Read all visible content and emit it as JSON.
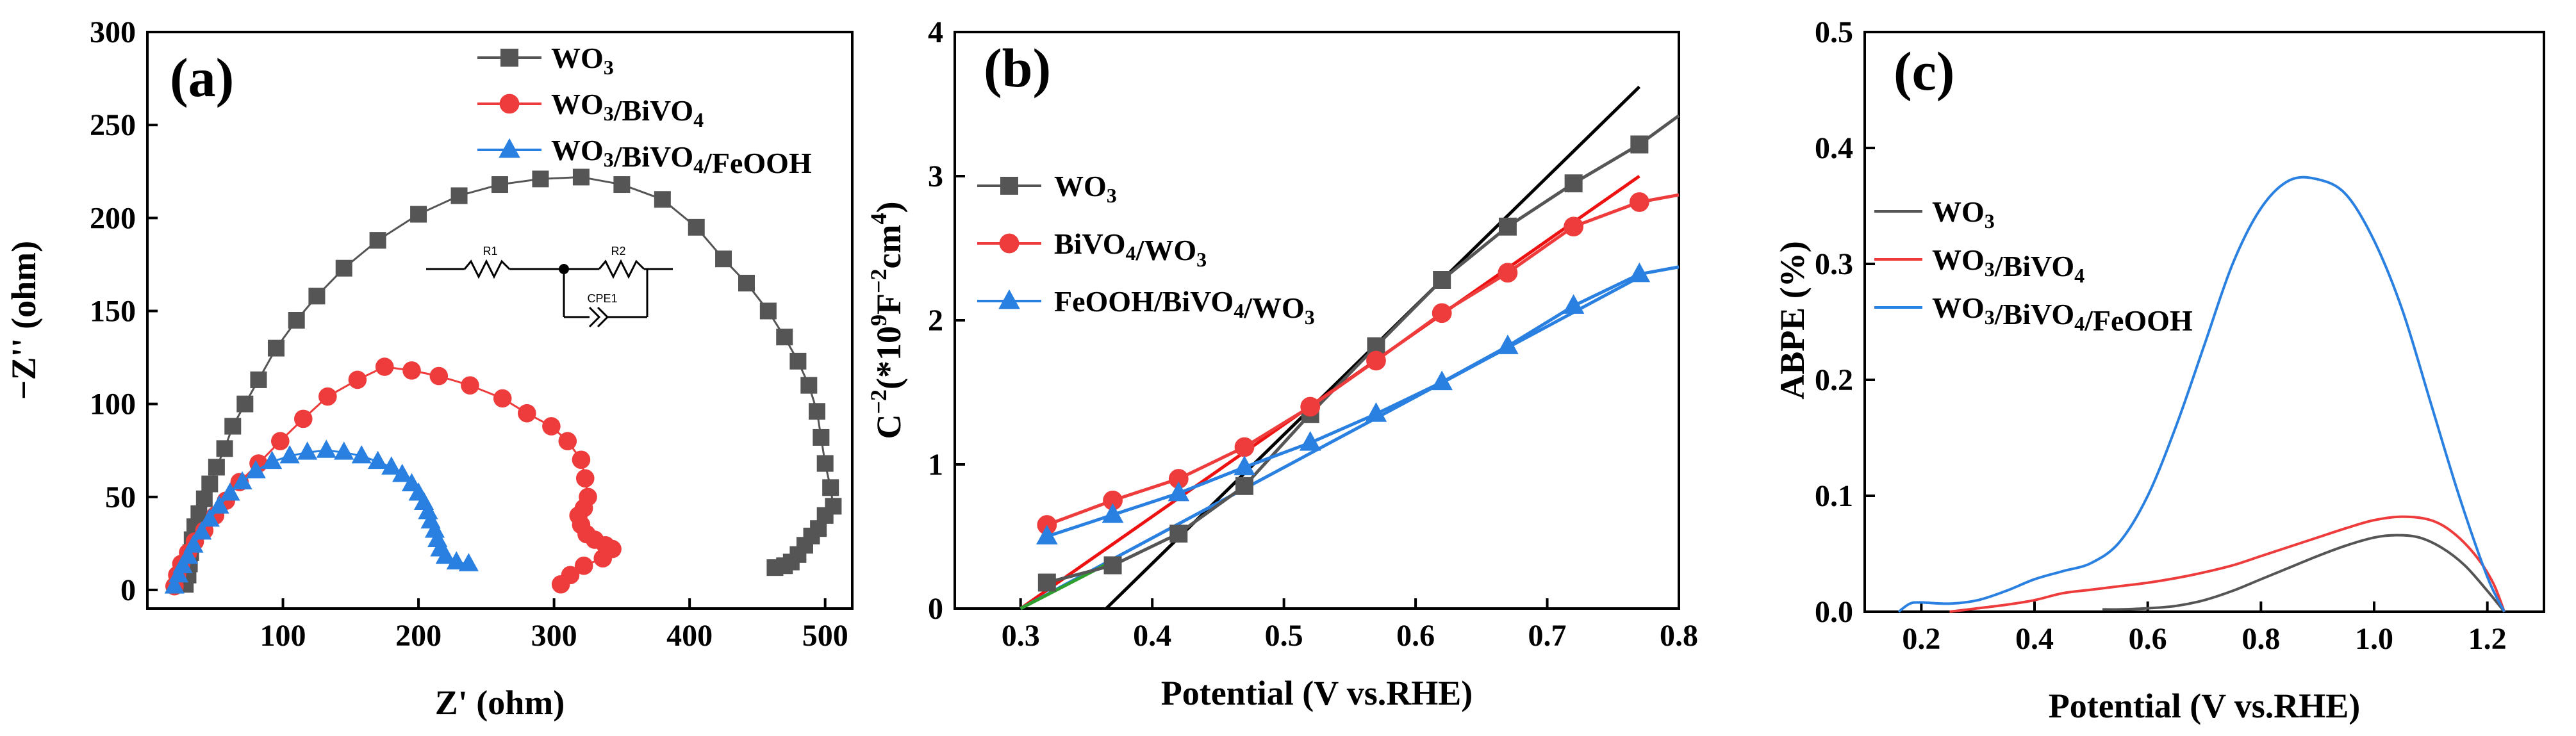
{
  "chart_data": [
    {
      "type": "scatter",
      "panel_label": "(a)",
      "xlabel": "Z' (ohm)",
      "ylabel": "-Z'' (ohm)",
      "xlim": [
        0,
        520
      ],
      "ylim": [
        -10,
        300
      ],
      "xticks": [
        100,
        200,
        300,
        400,
        500
      ],
      "yticks": [
        0,
        50,
        100,
        150,
        200,
        250,
        300
      ],
      "grid": false,
      "legend_position": "top-center",
      "inset": {
        "type": "equivalent-circuit",
        "labels": [
          "R1",
          "R2",
          "CPE1"
        ]
      },
      "series": [
        {
          "name": "WO3",
          "color": "#555555",
          "marker": "square",
          "points": [
            [
              28,
              3
            ],
            [
              30,
              8
            ],
            [
              31,
              14
            ],
            [
              32,
              20
            ],
            [
              33,
              27
            ],
            [
              35,
              34
            ],
            [
              38,
              41
            ],
            [
              42,
              49
            ],
            [
              46,
              57
            ],
            [
              51,
              66
            ],
            [
              57,
              76
            ],
            [
              63,
              88
            ],
            [
              72,
              100
            ],
            [
              82,
              113
            ],
            [
              95,
              130
            ],
            [
              110,
              145
            ],
            [
              125,
              158
            ],
            [
              145,
              173
            ],
            [
              170,
              188
            ],
            [
              200,
              202
            ],
            [
              230,
              212
            ],
            [
              260,
              218
            ],
            [
              290,
              221
            ],
            [
              320,
              222
            ],
            [
              350,
              218
            ],
            [
              380,
              210
            ],
            [
              405,
              195
            ],
            [
              425,
              178
            ],
            [
              442,
              165
            ],
            [
              458,
              150
            ],
            [
              470,
              136
            ],
            [
              480,
              123
            ],
            [
              488,
              110
            ],
            [
              494,
              96
            ],
            [
              497,
              82
            ],
            [
              500,
              68
            ],
            [
              504,
              55
            ],
            [
              506,
              45
            ],
            [
              500,
              40
            ],
            [
              495,
              33
            ],
            [
              490,
              29
            ],
            [
              485,
              24
            ],
            [
              480,
              19
            ],
            [
              475,
              15
            ],
            [
              470,
              13
            ],
            [
              463,
              12
            ]
          ]
        },
        {
          "name": "WO3/BiVO4",
          "color": "#ee3b3b",
          "marker": "circle",
          "points": [
            [
              20,
              2
            ],
            [
              22,
              8
            ],
            [
              25,
              14
            ],
            [
              30,
              20
            ],
            [
              35,
              26
            ],
            [
              42,
              32
            ],
            [
              50,
              40
            ],
            [
              58,
              48
            ],
            [
              68,
              58
            ],
            [
              82,
              68
            ],
            [
              98,
              80
            ],
            [
              115,
              92
            ],
            [
              133,
              104
            ],
            [
              155,
              113
            ],
            [
              175,
              120
            ],
            [
              195,
              118
            ],
            [
              215,
              115
            ],
            [
              238,
              110
            ],
            [
              262,
              103
            ],
            [
              280,
              95
            ],
            [
              298,
              88
            ],
            [
              310,
              80
            ],
            [
              320,
              70
            ],
            [
              323,
              60
            ],
            [
              325,
              50
            ],
            [
              322,
              44
            ],
            [
              318,
              40
            ],
            [
              320,
              35
            ],
            [
              324,
              30
            ],
            [
              330,
              27
            ],
            [
              338,
              24
            ],
            [
              343,
              22
            ],
            [
              336,
              17
            ],
            [
              322,
              13
            ],
            [
              312,
              8
            ],
            [
              305,
              3
            ]
          ]
        },
        {
          "name": "WO3/BiVO4/FeOOH",
          "color": "#2a80e0",
          "marker": "triangle",
          "points": [
            [
              20,
              2
            ],
            [
              23,
              8
            ],
            [
              26,
              13
            ],
            [
              30,
              18
            ],
            [
              34,
              24
            ],
            [
              40,
              31
            ],
            [
              46,
              38
            ],
            [
              53,
              45
            ],
            [
              61,
              52
            ],
            [
              70,
              58
            ],
            [
              80,
              64
            ],
            [
              92,
              69
            ],
            [
              105,
              72
            ],
            [
              118,
              74
            ],
            [
              132,
              75
            ],
            [
              145,
              74
            ],
            [
              158,
              72
            ],
            [
              170,
              69
            ],
            [
              180,
              66
            ],
            [
              188,
              62
            ],
            [
              195,
              57
            ],
            [
              200,
              52
            ],
            [
              204,
              47
            ],
            [
              207,
              42
            ],
            [
              209,
              37
            ],
            [
              212,
              32
            ],
            [
              214,
              27
            ],
            [
              216,
              22
            ],
            [
              220,
              18
            ],
            [
              228,
              15
            ],
            [
              237,
              14
            ]
          ]
        }
      ]
    },
    {
      "type": "line",
      "panel_label": "(b)",
      "xlabel": "Potential (V vs.RHE)",
      "ylabel": "C-2(*109F-2cm4)",
      "xlim": [
        0.25,
        0.8
      ],
      "ylim": [
        0,
        4
      ],
      "xticks": [
        0.3,
        0.4,
        0.5,
        0.6,
        0.7,
        0.8
      ],
      "yticks": [
        0,
        1,
        2,
        3,
        4
      ],
      "grid": false,
      "legend_position": "top-left",
      "series": [
        {
          "name": "WO3",
          "color": "#555555",
          "marker": "square",
          "x": [
            0.32,
            0.37,
            0.42,
            0.47,
            0.52,
            0.57,
            0.62,
            0.67,
            0.72,
            0.77,
            0.8
          ],
          "y": [
            0.18,
            0.3,
            0.52,
            0.85,
            1.35,
            1.82,
            2.28,
            2.65,
            2.95,
            3.22,
            3.42
          ],
          "marker_count": 10
        },
        {
          "name": "BiVO4/WO3",
          "color": "#ee3b3b",
          "marker": "circle",
          "x": [
            0.32,
            0.37,
            0.42,
            0.47,
            0.52,
            0.57,
            0.62,
            0.67,
            0.72,
            0.77,
            0.8
          ],
          "y": [
            0.58,
            0.75,
            0.9,
            1.12,
            1.4,
            1.72,
            2.05,
            2.33,
            2.65,
            2.82,
            2.87
          ],
          "marker_count": 10
        },
        {
          "name": "FeOOH/BiVO4/WO3",
          "color": "#2a80e0",
          "marker": "triangle",
          "x": [
            0.32,
            0.37,
            0.42,
            0.47,
            0.52,
            0.57,
            0.62,
            0.67,
            0.72,
            0.77,
            0.8
          ],
          "y": [
            0.5,
            0.65,
            0.8,
            0.98,
            1.15,
            1.35,
            1.57,
            1.82,
            2.1,
            2.32,
            2.37
          ],
          "marker_count": 10
        }
      ],
      "fit_lines": [
        {
          "color": "#000000",
          "x": [
            0.365,
            0.77
          ],
          "y": [
            0,
            3.62
          ]
        },
        {
          "color": "#ee1111",
          "x": [
            0.3,
            0.77
          ],
          "y": [
            0,
            3.0
          ]
        },
        {
          "color": "#2a80e0",
          "x": [
            0.3,
            0.77
          ],
          "y": [
            0,
            2.3
          ]
        },
        {
          "color": "#2e9e2e",
          "x": [
            0.3,
            0.37
          ],
          "y": [
            0,
            0.33
          ]
        }
      ]
    },
    {
      "type": "line",
      "panel_label": "(c)",
      "xlabel": "Potential (V vs.RHE)",
      "ylabel": "ABPE (%)",
      "xlim": [
        0.1,
        1.3
      ],
      "ylim": [
        0,
        0.5
      ],
      "xticks": [
        0.2,
        0.4,
        0.6,
        0.8,
        1.0,
        1.2
      ],
      "yticks": [
        0.0,
        0.1,
        0.2,
        0.3,
        0.4,
        0.5
      ],
      "grid": false,
      "legend_position": "center-left",
      "series": [
        {
          "name": "WO3",
          "color": "#555555",
          "x": [
            0.52,
            0.55,
            0.6,
            0.65,
            0.7,
            0.75,
            0.8,
            0.85,
            0.9,
            0.95,
            1.0,
            1.04,
            1.08,
            1.12,
            1.16,
            1.2,
            1.23
          ],
          "y": [
            0.002,
            0.002,
            0.003,
            0.005,
            0.01,
            0.018,
            0.028,
            0.038,
            0.048,
            0.057,
            0.064,
            0.066,
            0.064,
            0.055,
            0.04,
            0.018,
            0.0
          ]
        },
        {
          "name": "WO3/BiVO4",
          "color": "#ee3b3b",
          "x": [
            0.25,
            0.3,
            0.35,
            0.4,
            0.45,
            0.5,
            0.55,
            0.6,
            0.65,
            0.7,
            0.75,
            0.8,
            0.85,
            0.9,
            0.95,
            1.0,
            1.05,
            1.1,
            1.14,
            1.18,
            1.21,
            1.23
          ],
          "y": [
            0.0,
            0.003,
            0.006,
            0.01,
            0.016,
            0.019,
            0.022,
            0.025,
            0.029,
            0.034,
            0.04,
            0.048,
            0.056,
            0.064,
            0.072,
            0.079,
            0.082,
            0.079,
            0.068,
            0.048,
            0.025,
            0.0
          ]
        },
        {
          "name": "WO3/BiVO4/FeOOH",
          "color": "#2a80e0",
          "x": [
            0.16,
            0.18,
            0.2,
            0.25,
            0.3,
            0.35,
            0.4,
            0.45,
            0.5,
            0.55,
            0.6,
            0.65,
            0.7,
            0.75,
            0.8,
            0.85,
            0.9,
            0.95,
            1.0,
            1.05,
            1.1,
            1.15,
            1.2,
            1.23
          ],
          "y": [
            0.0,
            0.007,
            0.008,
            0.007,
            0.01,
            0.018,
            0.028,
            0.035,
            0.042,
            0.06,
            0.1,
            0.16,
            0.23,
            0.3,
            0.348,
            0.372,
            0.373,
            0.36,
            0.32,
            0.26,
            0.18,
            0.1,
            0.03,
            0.0
          ]
        }
      ]
    }
  ]
}
